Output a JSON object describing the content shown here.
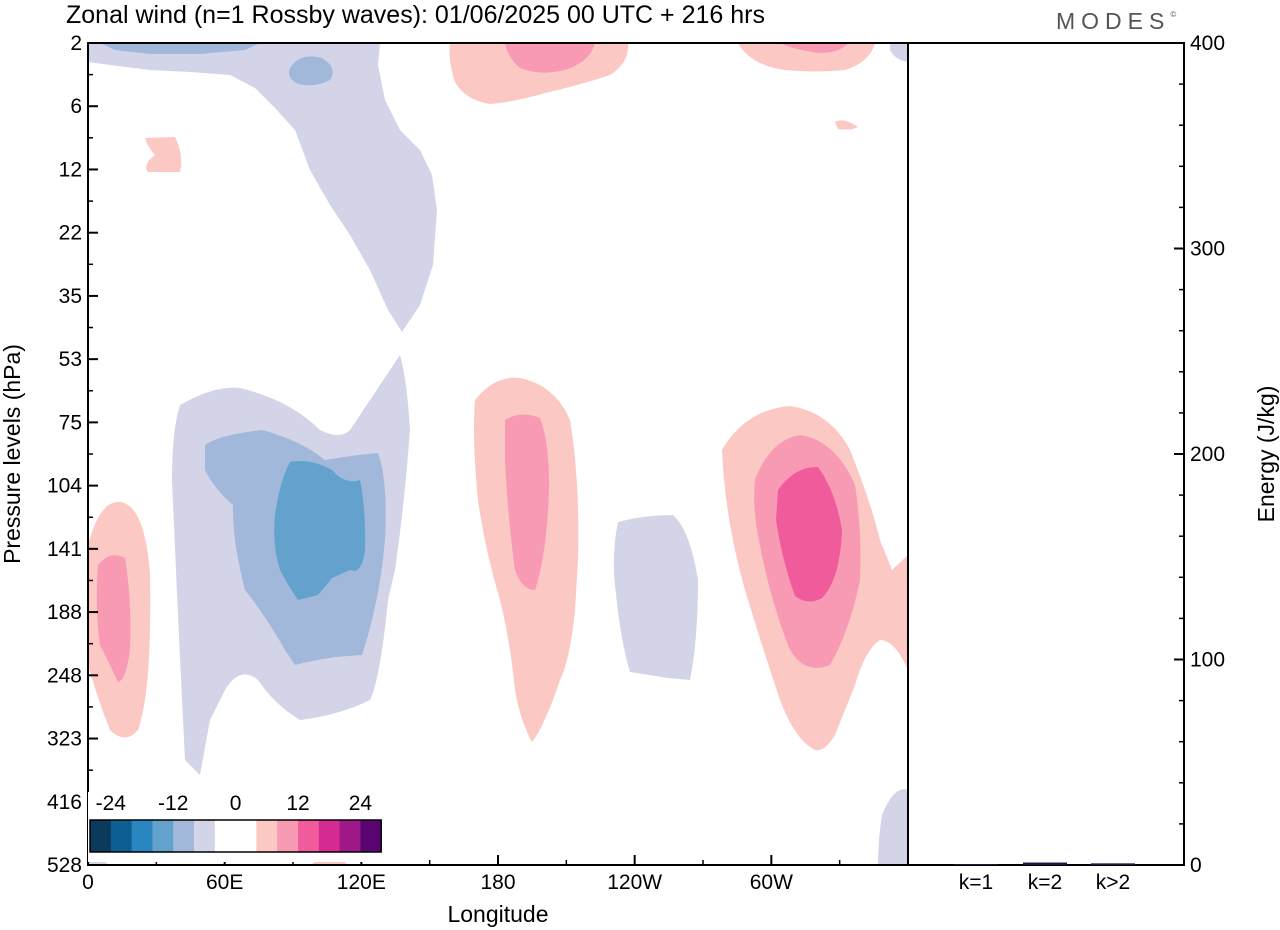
{
  "header": {
    "title": "Zonal wind (n=1 Rossby waves):  01/06/2025  00 UTC  + 216 hrs",
    "brand": "MODES",
    "brand_mark": "©"
  },
  "chart_data": [
    {
      "type": "heatmap",
      "title": "Zonal wind (n=1 Rossby waves):  01/06/2025  00 UTC  + 216 hrs",
      "xlabel": "Longitude",
      "ylabel": "Pressure levels (hPa)",
      "x_tick_labels": [
        "0",
        "60E",
        "120E",
        "180",
        "120W",
        "60W"
      ],
      "x_ticks_deg": [
        0,
        60,
        120,
        180,
        240,
        300
      ],
      "xlim_deg": [
        0,
        360
      ],
      "y_tick_labels": [
        "2",
        "6",
        "12",
        "22",
        "35",
        "53",
        "75",
        "104",
        "141",
        "188",
        "248",
        "323",
        "416",
        "528"
      ],
      "y_scale": "model-level (inverted, nonlinear)",
      "colorbar": {
        "tick_labels": [
          "-24",
          "-12",
          "0",
          "12",
          "24"
        ],
        "colors": [
          "#0b3a5c",
          "#0c5f92",
          "#2a86c1",
          "#62a2cd",
          "#a2b8da",
          "#d3d4e8",
          "#ffffff",
          "#ffffff",
          "#fbc8c4",
          "#f89ab3",
          "#f05b9c",
          "#d42a92",
          "#a01787",
          "#5a0472"
        ],
        "placement": "bottom-left"
      },
      "features": [
        {
          "sign": "negative",
          "peak_level": "~12",
          "lon": "110E-145E",
          "levels": "2-35 hPa"
        },
        {
          "sign": "negative",
          "peak_level": "-9 to -12",
          "lon": "60E-140E",
          "levels": "53-323 hPa"
        },
        {
          "sign": "negative",
          "peak_level": "-3",
          "lon": "125W-105W",
          "levels": "120-250 hPa"
        },
        {
          "sign": "positive",
          "peak_level": "6-9",
          "lon": "5E-10E",
          "levels": "104-323 hPa"
        },
        {
          "sign": "positive",
          "peak_level": "6-9",
          "lon": "170E-195E",
          "levels": "53-323 hPa"
        },
        {
          "sign": "positive",
          "peak_level": "9-12",
          "lon": "80W-50W",
          "levels": "75-300 hPa"
        },
        {
          "sign": "positive",
          "peak_level": "3-6",
          "lon": "160E-200E",
          "levels": "2-8 hPa"
        }
      ]
    },
    {
      "type": "bar",
      "ylabel": "Energy (J/kg)",
      "categories": [
        "k=1",
        "k=2",
        "k>2"
      ],
      "values": [
        0.3,
        1.2,
        0.8
      ],
      "ylim": [
        0,
        400
      ],
      "y_tick_labels": [
        "0",
        "100",
        "200",
        "300",
        "400"
      ],
      "bar_color": "#1a1a40"
    }
  ]
}
